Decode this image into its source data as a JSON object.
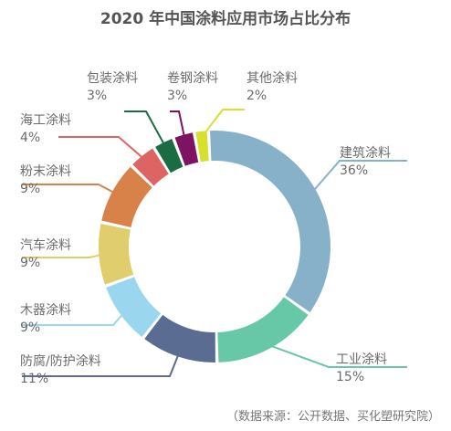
{
  "chart_data": {
    "type": "pie",
    "title": "2020 年中国涂料应用市场占比分布",
    "source": "（数据来源：公开数据、买化塑研究院）",
    "slices": [
      {
        "name": "建筑涂料",
        "value": 36,
        "label": "36%",
        "color": "#86b1c8"
      },
      {
        "name": "工业涂料",
        "value": 15,
        "label": "15%",
        "color": "#67c8a7"
      },
      {
        "name": "防腐/防护涂料",
        "value": 11,
        "label": "11%",
        "color": "#5a6c91"
      },
      {
        "name": "木器涂料",
        "value": 9,
        "label": "9%",
        "color": "#9ad7ef"
      },
      {
        "name": "汽车涂料",
        "value": 9,
        "label": "9%",
        "color": "#dfcd6e"
      },
      {
        "name": "粉末涂料",
        "value": 9,
        "label": "9%",
        "color": "#d88148"
      },
      {
        "name": "海工涂料",
        "value": 4,
        "label": "4%",
        "color": "#de6464"
      },
      {
        "name": "包装涂料",
        "value": 3,
        "label": "3%",
        "color": "#1c6c43"
      },
      {
        "name": "卷钢涂料",
        "value": 3,
        "label": "3%",
        "color": "#7d1361"
      },
      {
        "name": "其他涂料",
        "value": 2,
        "label": "2%",
        "color": "#d8e02e"
      }
    ]
  }
}
